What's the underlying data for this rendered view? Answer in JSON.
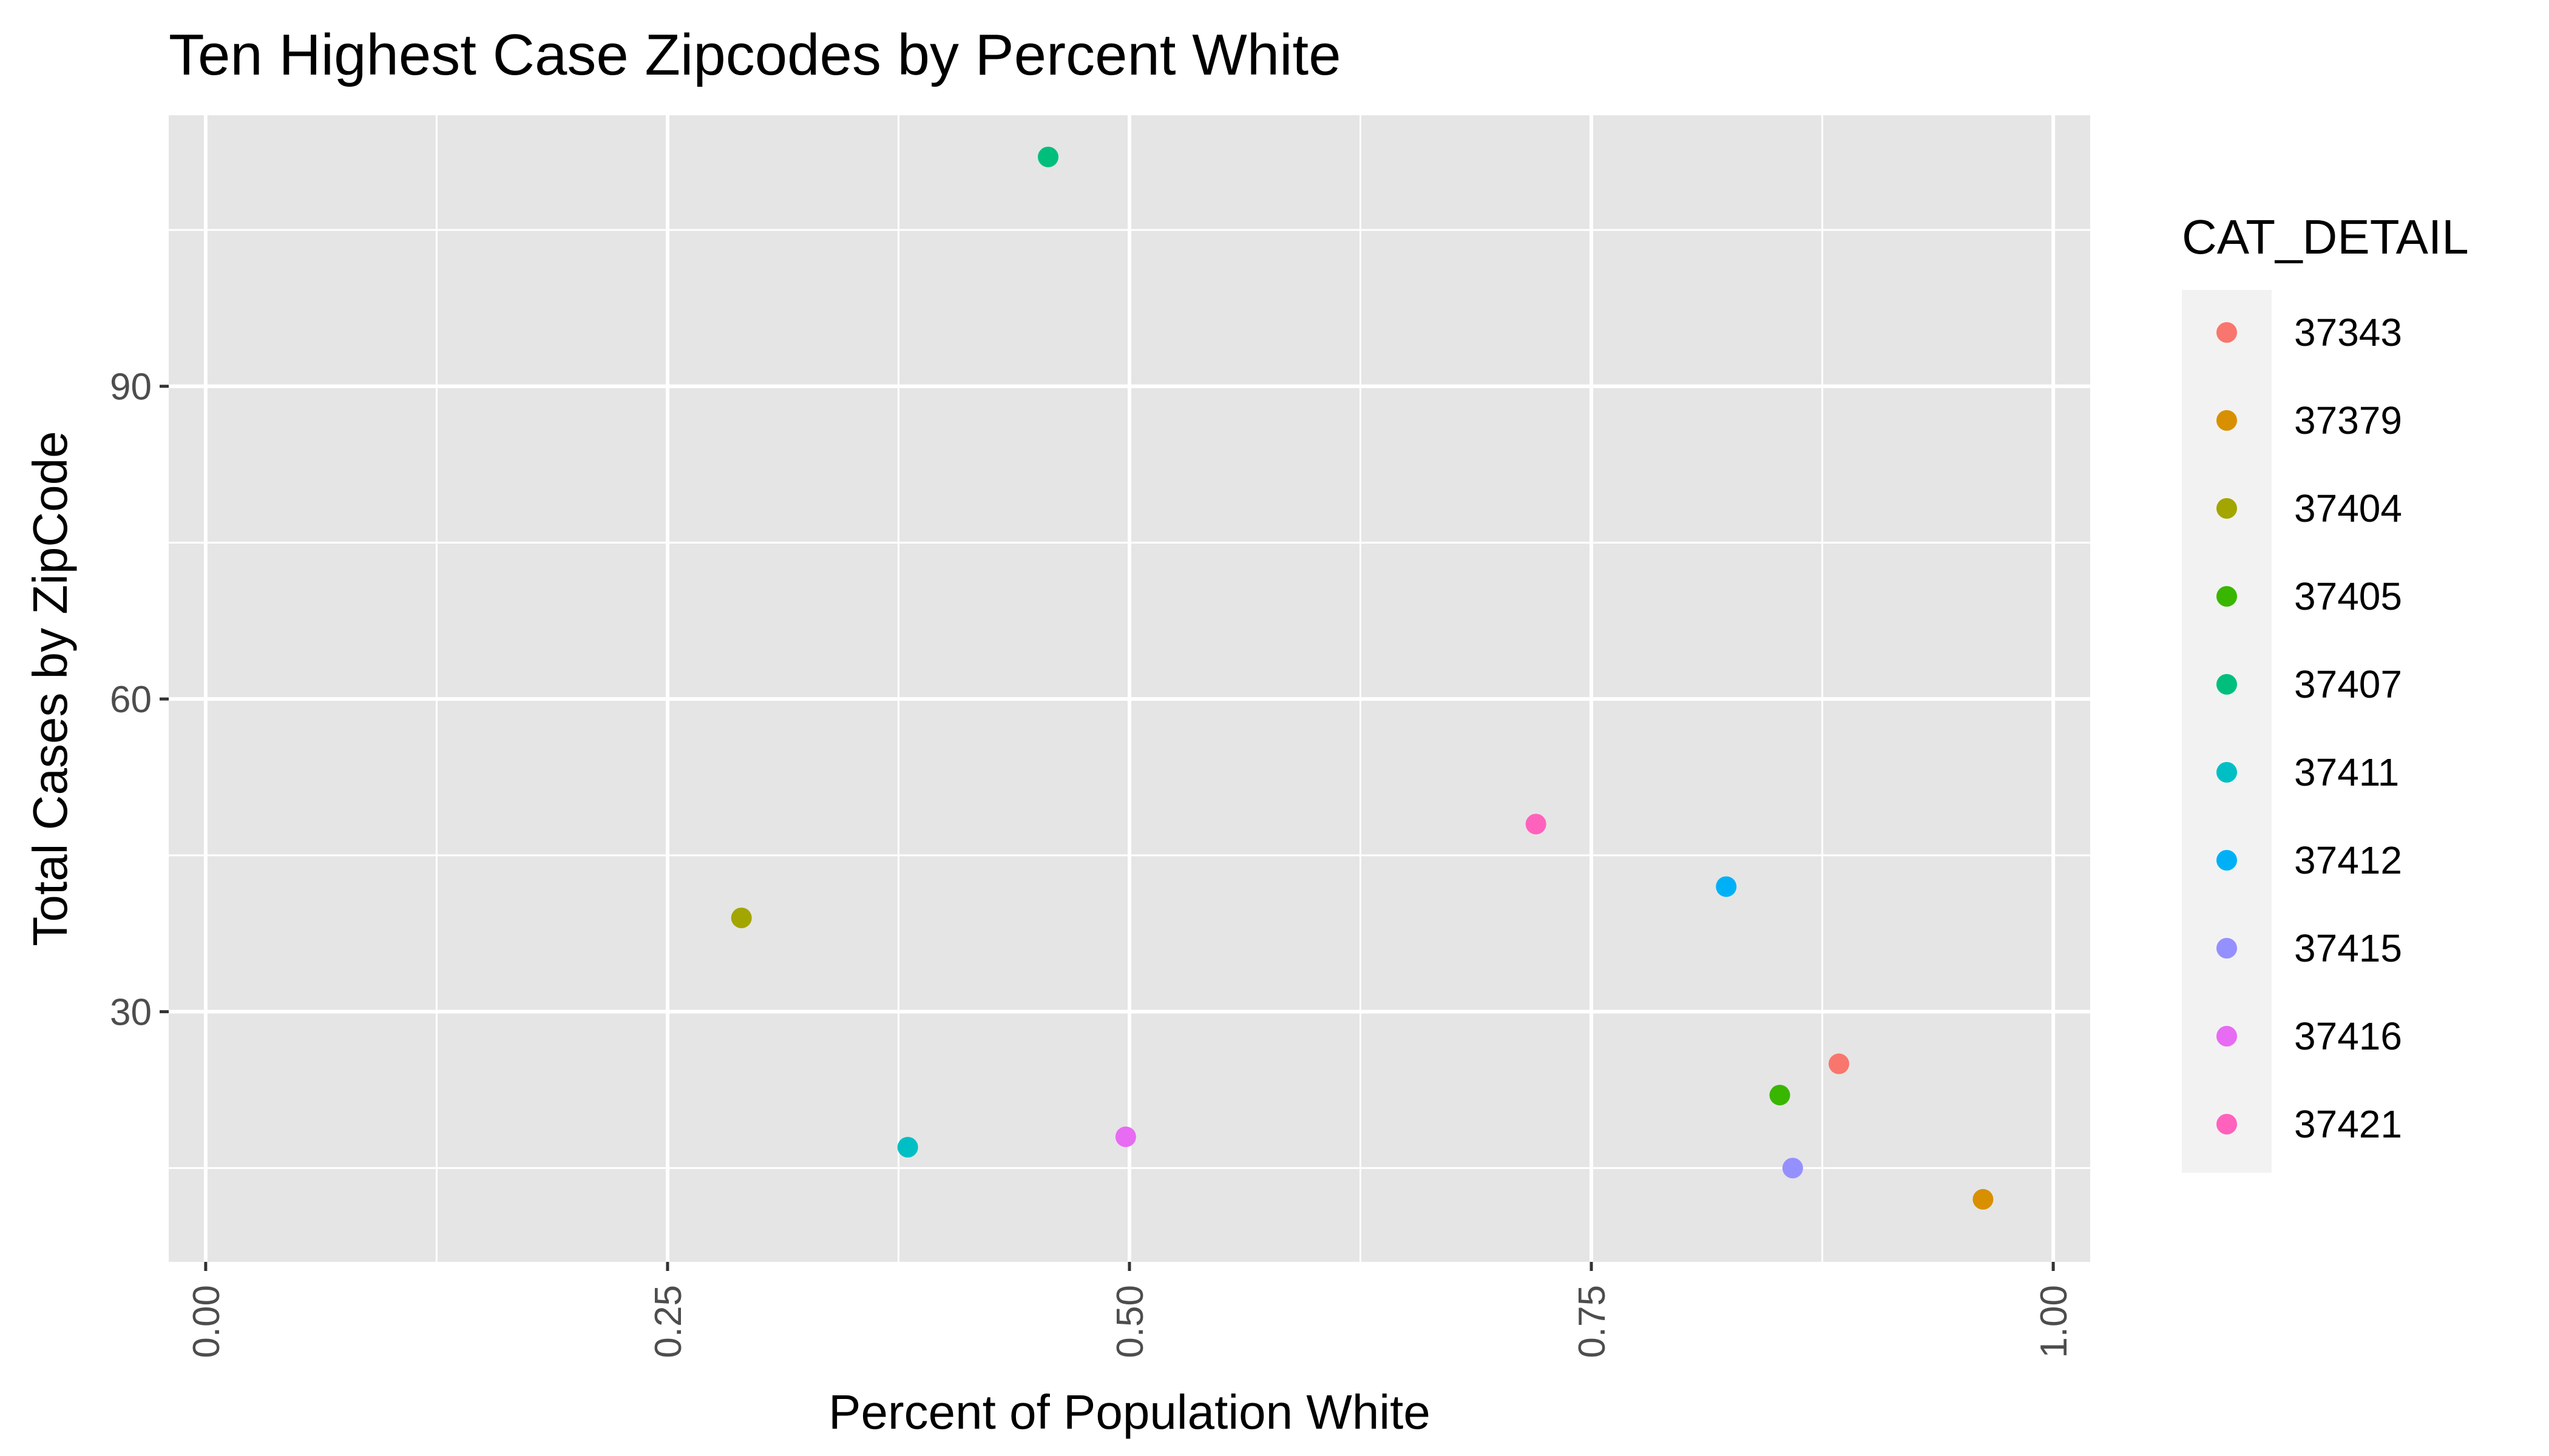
{
  "chart_data": {
    "type": "scatter",
    "title": "Ten Highest Case Zipcodes by Percent White",
    "xlabel": "Percent of Population White",
    "ylabel": "Total Cases by ZipCode",
    "xlim": [
      -0.02,
      1.02
    ],
    "ylim": [
      6,
      116
    ],
    "x_ticks": [
      "0.00",
      "0.25",
      "0.50",
      "0.75",
      "1.00"
    ],
    "x_tick_values": [
      0.0,
      0.25,
      0.5,
      0.75,
      1.0
    ],
    "y_ticks": [
      "30",
      "60",
      "90"
    ],
    "y_tick_values": [
      30,
      60,
      90
    ],
    "grid": true,
    "legend_title": "CAT_DETAIL",
    "legend_position": "right",
    "series": [
      {
        "name": "37343",
        "color": "#F8766D",
        "x": [
          0.884
        ],
        "y": [
          25
        ]
      },
      {
        "name": "37379",
        "color": "#D89000",
        "x": [
          0.962
        ],
        "y": [
          12
        ]
      },
      {
        "name": "37404",
        "color": "#A3A500",
        "x": [
          0.29
        ],
        "y": [
          39
        ]
      },
      {
        "name": "37405",
        "color": "#39B600",
        "x": [
          0.852
        ],
        "y": [
          22
        ]
      },
      {
        "name": "37407",
        "color": "#00BF7D",
        "x": [
          0.456
        ],
        "y": [
          112
        ]
      },
      {
        "name": "37411",
        "color": "#00BFC4",
        "x": [
          0.38
        ],
        "y": [
          17
        ]
      },
      {
        "name": "37412",
        "color": "#00B0F6",
        "x": [
          0.823
        ],
        "y": [
          42
        ]
      },
      {
        "name": "37415",
        "color": "#9590FF",
        "x": [
          0.859
        ],
        "y": [
          15
        ]
      },
      {
        "name": "37416",
        "color": "#E76BF3",
        "x": [
          0.498
        ],
        "y": [
          18
        ]
      },
      {
        "name": "37421",
        "color": "#FF62BC",
        "x": [
          0.72
        ],
        "y": [
          48
        ]
      }
    ]
  }
}
